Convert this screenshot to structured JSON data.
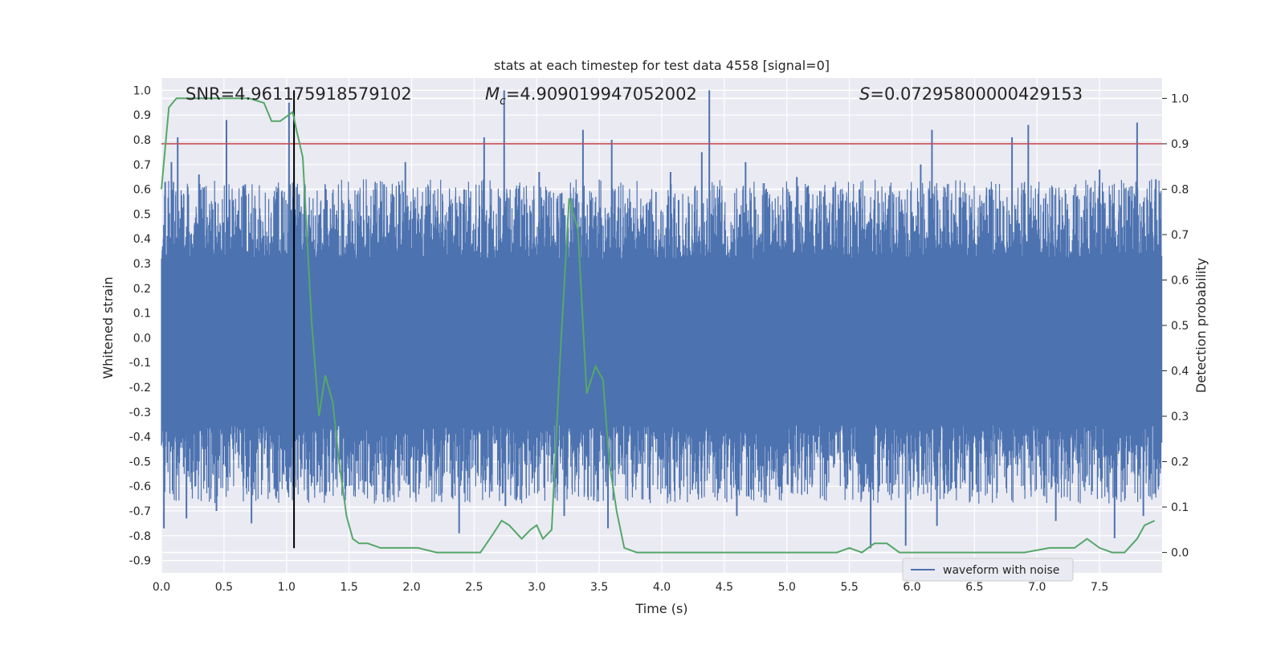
{
  "chart_data": {
    "type": "line",
    "title": "stats at each timestep for test data 4558 [signal=0]",
    "xlabel": "Time (s)",
    "ylabel_left": "Whitened strain",
    "ylabel_right": "Detection probability",
    "xlim": [
      0.0,
      8.0
    ],
    "ylim_left": [
      -0.95,
      1.05
    ],
    "ylim_right": [
      -0.045,
      1.045
    ],
    "x_ticks": [
      "0.0",
      "0.5",
      "1.0",
      "1.5",
      "2.0",
      "2.5",
      "3.0",
      "3.5",
      "4.0",
      "4.5",
      "5.0",
      "5.5",
      "6.0",
      "6.5",
      "7.0",
      "7.5"
    ],
    "y_ticks_left": [
      "1.0",
      "0.9",
      "0.8",
      "0.7",
      "0.6",
      "0.5",
      "0.4",
      "0.3",
      "0.2",
      "0.1",
      "0.0",
      "-0.1",
      "-0.2",
      "-0.3",
      "-0.4",
      "-0.5",
      "-0.6",
      "-0.7",
      "-0.8",
      "-0.9"
    ],
    "y_ticks_right": [
      "1.0",
      "0.9",
      "0.8",
      "0.7",
      "0.6",
      "0.5",
      "0.4",
      "0.3",
      "0.2",
      "0.1",
      "0.0"
    ],
    "grid": true,
    "legend_position": "bottom-right",
    "annotations": {
      "snr": "SNR=4.961175918579102",
      "mc_symbol": "M",
      "mc_sub": "c",
      "mc_value": "=4.909019947052002",
      "s_symbol": "S",
      "s_value": "=0.07295800000429153"
    },
    "threshold_line": {
      "y_right": 0.9,
      "color": "#c44e52"
    },
    "vertical_marker": {
      "x": 1.06,
      "y_left_range": [
        -0.85,
        1.0
      ],
      "color": "#000000"
    },
    "series": [
      {
        "name": "waveform with noise",
        "color": "#4c72b0",
        "axis": "left",
        "band_core": [
          -0.3,
          0.27
        ],
        "peaks_positive": [
          {
            "x": 0.03,
            "y": 0.63
          },
          {
            "x": 0.08,
            "y": 0.71
          },
          {
            "x": 0.13,
            "y": 0.81
          },
          {
            "x": 0.3,
            "y": 0.66
          },
          {
            "x": 0.52,
            "y": 0.88
          },
          {
            "x": 0.67,
            "y": 0.62
          },
          {
            "x": 1.02,
            "y": 0.95
          },
          {
            "x": 1.1,
            "y": 0.58
          },
          {
            "x": 1.3,
            "y": 0.52
          },
          {
            "x": 1.78,
            "y": 0.62
          },
          {
            "x": 1.95,
            "y": 0.71
          },
          {
            "x": 2.42,
            "y": 0.6
          },
          {
            "x": 2.58,
            "y": 0.81
          },
          {
            "x": 2.74,
            "y": 1.0
          },
          {
            "x": 3.02,
            "y": 0.67
          },
          {
            "x": 3.37,
            "y": 0.84
          },
          {
            "x": 3.6,
            "y": 0.8
          },
          {
            "x": 4.07,
            "y": 0.67
          },
          {
            "x": 4.32,
            "y": 0.75
          },
          {
            "x": 4.38,
            "y": 1.0
          },
          {
            "x": 4.67,
            "y": 0.71
          },
          {
            "x": 5.08,
            "y": 0.65
          },
          {
            "x": 5.58,
            "y": 0.6
          },
          {
            "x": 6.07,
            "y": 0.7
          },
          {
            "x": 6.16,
            "y": 0.84
          },
          {
            "x": 6.62,
            "y": 0.6
          },
          {
            "x": 6.8,
            "y": 0.81
          },
          {
            "x": 6.93,
            "y": 0.86
          },
          {
            "x": 7.5,
            "y": 0.68
          },
          {
            "x": 7.8,
            "y": 0.87
          },
          {
            "x": 7.95,
            "y": 0.64
          }
        ],
        "peaks_negative": [
          {
            "x": 0.02,
            "y": -0.77
          },
          {
            "x": 0.2,
            "y": -0.73
          },
          {
            "x": 0.44,
            "y": -0.7
          },
          {
            "x": 0.72,
            "y": -0.75
          },
          {
            "x": 1.0,
            "y": -0.58
          },
          {
            "x": 1.22,
            "y": -0.55
          },
          {
            "x": 2.38,
            "y": -0.79
          },
          {
            "x": 2.75,
            "y": -0.68
          },
          {
            "x": 3.22,
            "y": -0.72
          },
          {
            "x": 3.57,
            "y": -0.77
          },
          {
            "x": 4.6,
            "y": -0.72
          },
          {
            "x": 5.67,
            "y": -0.85
          },
          {
            "x": 5.95,
            "y": -0.84
          },
          {
            "x": 6.2,
            "y": -0.76
          },
          {
            "x": 7.15,
            "y": -0.74
          },
          {
            "x": 7.62,
            "y": -0.81
          },
          {
            "x": 7.85,
            "y": -0.72
          }
        ]
      },
      {
        "name": "",
        "color": "#55a868",
        "axis": "right",
        "x": [
          0.0,
          0.06,
          0.12,
          0.2,
          0.3,
          0.5,
          0.7,
          0.82,
          0.88,
          0.95,
          1.0,
          1.05,
          1.08,
          1.13,
          1.2,
          1.26,
          1.31,
          1.37,
          1.42,
          1.48,
          1.53,
          1.58,
          1.65,
          1.75,
          1.85,
          1.95,
          2.05,
          2.2,
          2.4,
          2.55,
          2.65,
          2.72,
          2.78,
          2.88,
          2.95,
          3.0,
          3.05,
          3.12,
          3.19,
          3.26,
          3.33,
          3.4,
          3.47,
          3.53,
          3.58,
          3.64,
          3.7,
          3.8,
          4.0,
          4.2,
          4.5,
          4.8,
          5.0,
          5.2,
          5.4,
          5.5,
          5.6,
          5.7,
          5.8,
          5.9,
          6.0,
          6.2,
          6.5,
          6.9,
          7.1,
          7.3,
          7.4,
          7.5,
          7.6,
          7.7,
          7.8,
          7.86,
          7.94
        ],
        "y": [
          0.8,
          0.98,
          1.0,
          1.0,
          1.0,
          1.0,
          1.0,
          0.99,
          0.95,
          0.95,
          0.96,
          0.97,
          0.93,
          0.87,
          0.51,
          0.3,
          0.39,
          0.33,
          0.2,
          0.08,
          0.03,
          0.02,
          0.02,
          0.01,
          0.01,
          0.01,
          0.01,
          0.0,
          0.0,
          0.0,
          0.04,
          0.07,
          0.06,
          0.03,
          0.05,
          0.06,
          0.03,
          0.05,
          0.44,
          0.78,
          0.71,
          0.35,
          0.41,
          0.38,
          0.2,
          0.09,
          0.01,
          0.0,
          0.0,
          0.0,
          0.0,
          0.0,
          0.0,
          0.0,
          0.0,
          0.01,
          0.0,
          0.02,
          0.02,
          0.0,
          0.0,
          0.0,
          0.0,
          0.0,
          0.01,
          0.01,
          0.03,
          0.01,
          0.0,
          0.0,
          0.03,
          0.06,
          0.07
        ]
      }
    ]
  }
}
